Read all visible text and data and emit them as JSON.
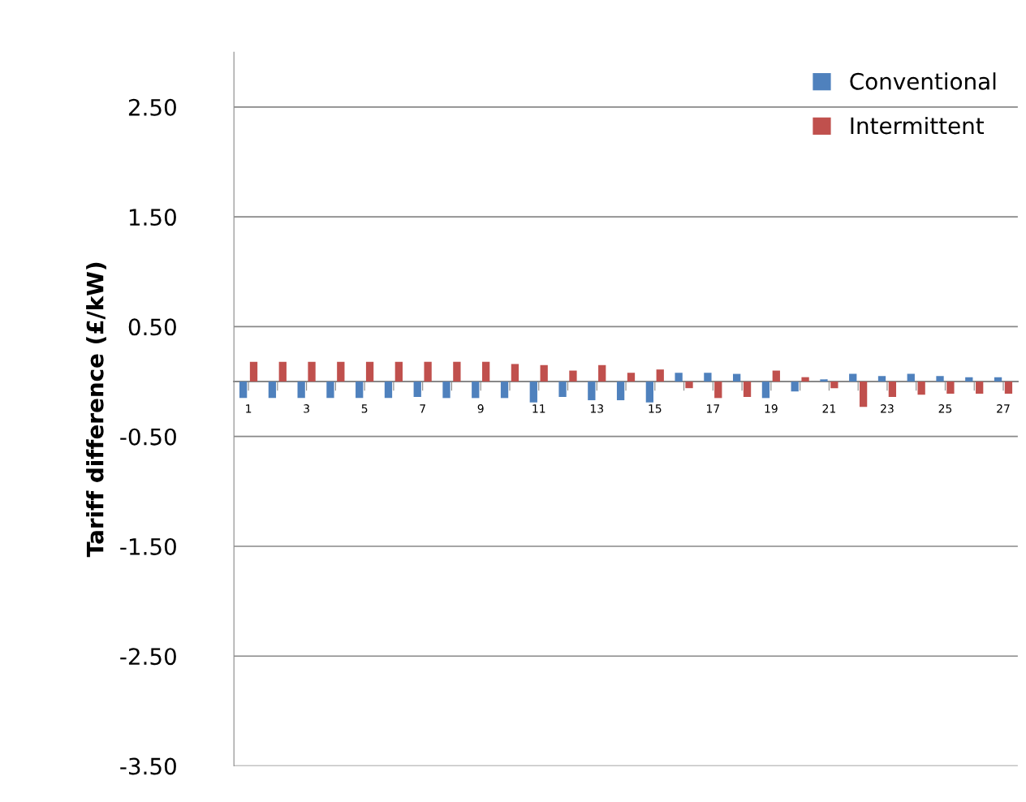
{
  "chart_data": {
    "type": "bar",
    "ylabel": "Tariff difference (£/kW)",
    "categories": [
      "1",
      null,
      "3",
      null,
      "5",
      null,
      "7",
      null,
      "9",
      null,
      "11",
      null,
      "13",
      null,
      "15",
      null,
      "17",
      null,
      "19",
      null,
      "21",
      null,
      "23",
      null,
      "25",
      null,
      "27"
    ],
    "series": [
      {
        "name": "Conventional",
        "color": "#4f81bd",
        "values": [
          -0.15,
          -0.15,
          -0.15,
          -0.15,
          -0.15,
          -0.15,
          -0.14,
          -0.15,
          -0.15,
          -0.15,
          -0.19,
          -0.14,
          -0.17,
          -0.17,
          -0.19,
          0.08,
          0.08,
          0.07,
          -0.15,
          -0.09,
          0.02,
          0.07,
          0.05,
          0.07,
          0.05,
          0.04,
          0.04
        ]
      },
      {
        "name": "Intermittent",
        "color": "#c0504d",
        "values": [
          0.18,
          0.18,
          0.18,
          0.18,
          0.18,
          0.18,
          0.18,
          0.18,
          0.18,
          0.16,
          0.15,
          0.1,
          0.15,
          0.08,
          0.11,
          -0.06,
          -0.15,
          -0.14,
          0.1,
          0.04,
          -0.06,
          -0.23,
          -0.14,
          -0.12,
          -0.11,
          -0.11,
          -0.11
        ]
      }
    ],
    "ylim": [
      -3.5,
      3.0
    ],
    "yticks": [
      {
        "value": -3.5,
        "label": "-3.50"
      },
      {
        "value": -2.5,
        "label": "-2.50"
      },
      {
        "value": -1.5,
        "label": "-1.50"
      },
      {
        "value": -0.5,
        "label": "-0.50"
      },
      {
        "value": 0.5,
        "label": "0.50"
      },
      {
        "value": 1.5,
        "label": "1.50"
      },
      {
        "value": 2.5,
        "label": "2.50"
      }
    ],
    "grid": "y",
    "legend": "top right"
  }
}
